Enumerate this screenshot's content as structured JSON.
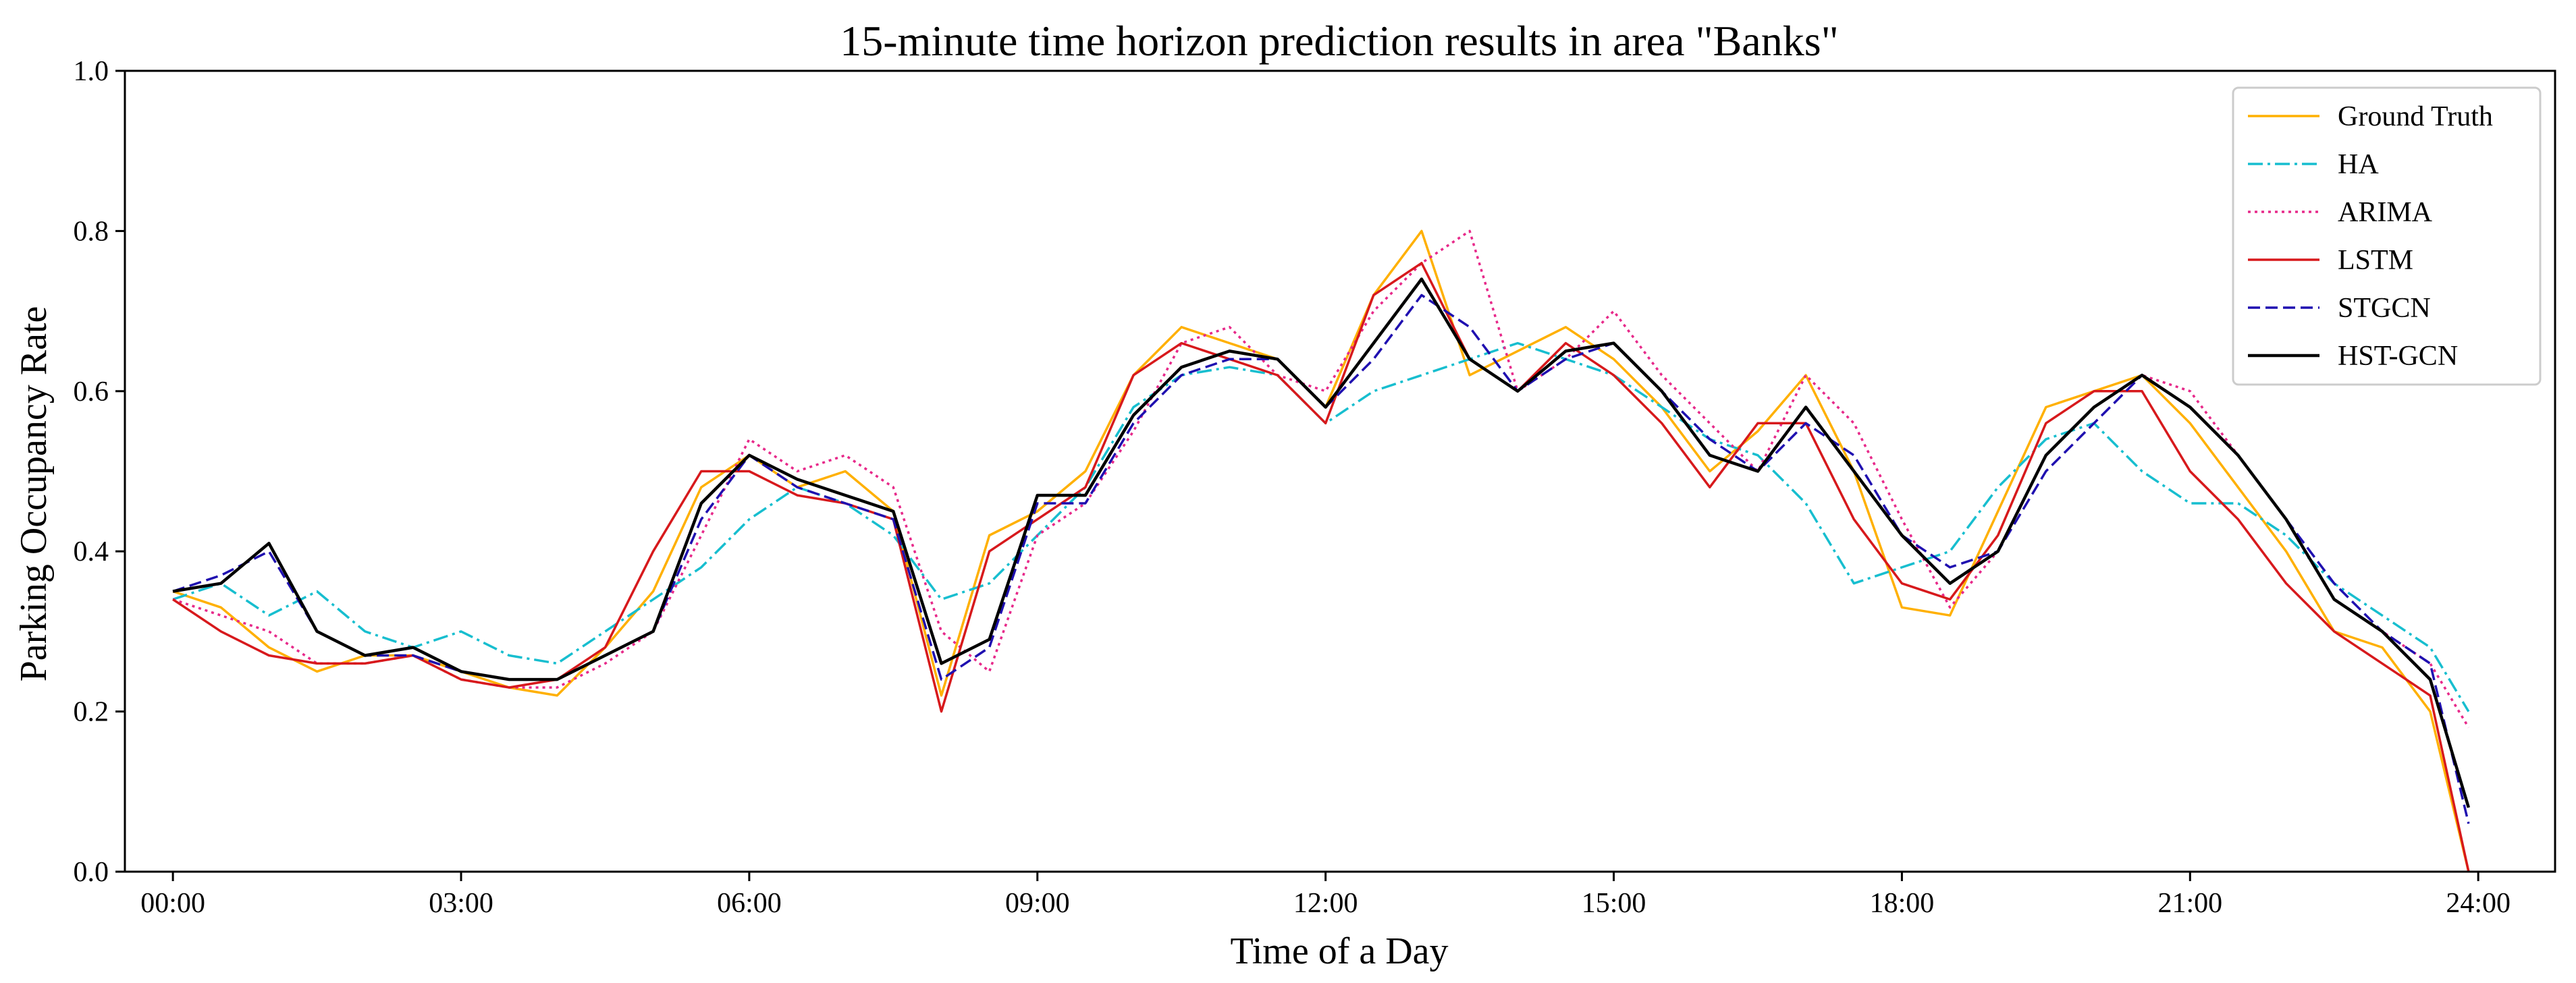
{
  "chart_data": {
    "type": "line",
    "title": "15-minute time horizon prediction results in area \"Banks\"",
    "xlabel": "Time of a Day",
    "ylabel": "Parking Occupancy Rate",
    "xlim": [
      -0.5,
      24.8
    ],
    "ylim": [
      0.0,
      1.0
    ],
    "x_ticks": [
      "00:00",
      "03:00",
      "06:00",
      "09:00",
      "12:00",
      "15:00",
      "18:00",
      "21:00",
      "24:00"
    ],
    "y_ticks": [
      "0.0",
      "0.2",
      "0.4",
      "0.6",
      "0.8",
      "1.0"
    ],
    "grid": false,
    "legend_position": "upper right",
    "x": [
      0.0,
      0.5,
      1.0,
      1.5,
      2.0,
      2.5,
      3.0,
      3.5,
      4.0,
      4.5,
      5.0,
      5.5,
      6.0,
      6.5,
      7.0,
      7.5,
      8.0,
      8.5,
      9.0,
      9.5,
      10.0,
      10.5,
      11.0,
      11.5,
      12.0,
      12.5,
      13.0,
      13.5,
      14.0,
      14.5,
      15.0,
      15.5,
      16.0,
      16.5,
      17.0,
      17.5,
      18.0,
      18.5,
      19.0,
      19.5,
      20.0,
      20.5,
      21.0,
      21.5,
      22.0,
      22.5,
      23.0,
      23.5,
      23.9
    ],
    "series": [
      {
        "name": "Ground Truth",
        "color": "#FFB000",
        "style": "solid",
        "values": [
          0.35,
          0.33,
          0.28,
          0.25,
          0.27,
          0.27,
          0.25,
          0.23,
          0.22,
          0.28,
          0.35,
          0.48,
          0.52,
          0.48,
          0.5,
          0.45,
          0.22,
          0.42,
          0.45,
          0.5,
          0.62,
          0.68,
          0.66,
          0.64,
          0.58,
          0.72,
          0.8,
          0.62,
          0.65,
          0.68,
          0.64,
          0.58,
          0.5,
          0.55,
          0.62,
          0.5,
          0.33,
          0.32,
          0.45,
          0.58,
          0.6,
          0.62,
          0.56,
          0.48,
          0.4,
          0.3,
          0.28,
          0.2,
          0.0
        ]
      },
      {
        "name": "HA",
        "color": "#17BECF",
        "style": "dashdot",
        "values": [
          0.34,
          0.36,
          0.32,
          0.35,
          0.3,
          0.28,
          0.3,
          0.27,
          0.26,
          0.3,
          0.34,
          0.38,
          0.44,
          0.48,
          0.46,
          0.42,
          0.34,
          0.36,
          0.42,
          0.48,
          0.58,
          0.62,
          0.63,
          0.62,
          0.56,
          0.6,
          0.62,
          0.64,
          0.66,
          0.64,
          0.62,
          0.58,
          0.54,
          0.52,
          0.46,
          0.36,
          0.38,
          0.4,
          0.48,
          0.54,
          0.56,
          0.5,
          0.46,
          0.46,
          0.42,
          0.36,
          0.32,
          0.28,
          0.2
        ]
      },
      {
        "name": "ARIMA",
        "color": "#E7298A",
        "style": "dotted",
        "values": [
          0.34,
          0.32,
          0.3,
          0.26,
          0.26,
          0.27,
          0.24,
          0.23,
          0.23,
          0.26,
          0.3,
          0.42,
          0.54,
          0.5,
          0.52,
          0.48,
          0.3,
          0.25,
          0.42,
          0.46,
          0.55,
          0.66,
          0.68,
          0.62,
          0.6,
          0.7,
          0.76,
          0.8,
          0.6,
          0.64,
          0.7,
          0.62,
          0.56,
          0.5,
          0.62,
          0.56,
          0.44,
          0.33,
          0.4,
          0.52,
          0.58,
          0.62,
          0.6,
          0.52,
          0.44,
          0.34,
          0.3,
          0.26,
          0.18
        ]
      },
      {
        "name": "LSTM",
        "color": "#D7191C",
        "style": "solid",
        "values": [
          0.34,
          0.3,
          0.27,
          0.26,
          0.26,
          0.27,
          0.24,
          0.23,
          0.24,
          0.28,
          0.4,
          0.5,
          0.5,
          0.47,
          0.46,
          0.44,
          0.2,
          0.4,
          0.44,
          0.48,
          0.62,
          0.66,
          0.64,
          0.62,
          0.56,
          0.72,
          0.76,
          0.64,
          0.6,
          0.66,
          0.62,
          0.56,
          0.48,
          0.56,
          0.56,
          0.44,
          0.36,
          0.34,
          0.42,
          0.56,
          0.6,
          0.6,
          0.5,
          0.44,
          0.36,
          0.3,
          0.26,
          0.22,
          0.0
        ]
      },
      {
        "name": "STGCN",
        "color": "#1F10B0",
        "style": "dashed",
        "values": [
          0.35,
          0.37,
          0.4,
          0.3,
          0.27,
          0.27,
          0.25,
          0.24,
          0.24,
          0.27,
          0.3,
          0.44,
          0.52,
          0.48,
          0.46,
          0.44,
          0.24,
          0.28,
          0.46,
          0.46,
          0.56,
          0.62,
          0.64,
          0.64,
          0.58,
          0.64,
          0.72,
          0.68,
          0.6,
          0.64,
          0.66,
          0.6,
          0.54,
          0.5,
          0.56,
          0.52,
          0.42,
          0.38,
          0.4,
          0.5,
          0.56,
          0.62,
          0.58,
          0.52,
          0.44,
          0.36,
          0.3,
          0.26,
          0.06
        ]
      },
      {
        "name": "HST-GCN",
        "color": "#000000",
        "style": "solid",
        "values": [
          0.35,
          0.36,
          0.41,
          0.3,
          0.27,
          0.28,
          0.25,
          0.24,
          0.24,
          0.27,
          0.3,
          0.46,
          0.52,
          0.49,
          0.47,
          0.45,
          0.26,
          0.29,
          0.47,
          0.47,
          0.57,
          0.63,
          0.65,
          0.64,
          0.58,
          0.66,
          0.74,
          0.64,
          0.6,
          0.65,
          0.66,
          0.6,
          0.52,
          0.5,
          0.58,
          0.5,
          0.42,
          0.36,
          0.4,
          0.52,
          0.58,
          0.62,
          0.58,
          0.52,
          0.44,
          0.34,
          0.3,
          0.24,
          0.08
        ]
      }
    ]
  }
}
